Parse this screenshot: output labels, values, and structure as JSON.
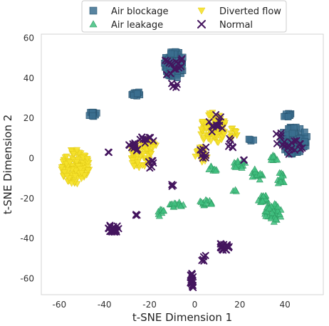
{
  "chart_data": {
    "type": "scatter",
    "xlabel": "t-SNE Dimension 1",
    "ylabel": "t-SNE Dimension 2",
    "xlim": [
      -68,
      57
    ],
    "ylim": [
      -68,
      62
    ],
    "xticks": [
      -60,
      -40,
      -20,
      0,
      20,
      40
    ],
    "yticks": [
      60,
      40,
      20,
      0,
      -20,
      -40,
      -60
    ],
    "grid": false,
    "legend_position": "top-center",
    "legend": [
      "Air blockage",
      "Diverted flow",
      "Air leakage",
      "Normal"
    ],
    "series": [
      {
        "name": "Air blockage",
        "marker": "square",
        "color": "#3b6e8f",
        "clusters": [
          {
            "cx": -9,
            "cy": 47,
            "rx": 4.5,
            "ry": 7,
            "n": 70
          },
          {
            "cx": -26,
            "cy": 32,
            "rx": 2,
            "ry": 1.5,
            "n": 12
          },
          {
            "cx": -45,
            "cy": 22,
            "rx": 2,
            "ry": 1.2,
            "n": 12
          },
          {
            "cx": 44,
            "cy": 9,
            "rx": 6,
            "ry": 7,
            "n": 70
          },
          {
            "cx": 41,
            "cy": 22,
            "rx": 2,
            "ry": 1.5,
            "n": 10
          },
          {
            "cx": 25,
            "cy": 9,
            "rx": 1.2,
            "ry": 1.2,
            "n": 4
          }
        ]
      },
      {
        "name": "Air leakage",
        "marker": "triangle-up",
        "color": "#3fbf7f",
        "clusters": [
          {
            "cx": 35,
            "cy": -27,
            "rx": 4,
            "ry": 5,
            "n": 40
          },
          {
            "cx": 30,
            "cy": -20,
            "rx": 2.5,
            "ry": 2,
            "n": 18
          },
          {
            "cx": 28,
            "cy": -8,
            "rx": 3,
            "ry": 3,
            "n": 18
          },
          {
            "cx": 20,
            "cy": -3,
            "rx": 3,
            "ry": 2,
            "n": 14
          },
          {
            "cx": 38,
            "cy": -10,
            "rx": 2,
            "ry": 3,
            "n": 12
          },
          {
            "cx": 35,
            "cy": 0,
            "rx": 2,
            "ry": 2,
            "n": 8
          },
          {
            "cx": -8,
            "cy": -23,
            "rx": 3,
            "ry": 1.5,
            "n": 14
          },
          {
            "cx": 5,
            "cy": -22,
            "rx": 3,
            "ry": 1.5,
            "n": 14
          },
          {
            "cx": -15,
            "cy": -27,
            "rx": 2,
            "ry": 2,
            "n": 8
          },
          {
            "cx": 8,
            "cy": -5,
            "rx": 2,
            "ry": 2,
            "n": 8
          },
          {
            "cx": 18,
            "cy": -16,
            "rx": 1,
            "ry": 1,
            "n": 3
          }
        ]
      },
      {
        "name": "Diverted flow",
        "marker": "triangle-down",
        "color": "#f5e12a",
        "clusters": [
          {
            "cx": -53,
            "cy": -4,
            "rx": 6.5,
            "ry": 9,
            "n": 130
          },
          {
            "cx": -24,
            "cy": 1,
            "rx": 5,
            "ry": 7,
            "n": 60
          },
          {
            "cx": -20,
            "cy": 7,
            "rx": 3,
            "ry": 3,
            "n": 18
          },
          {
            "cx": 8,
            "cy": 15,
            "rx": 6,
            "ry": 8,
            "n": 90
          },
          {
            "cx": 3,
            "cy": 2,
            "rx": 3,
            "ry": 4,
            "n": 20
          },
          {
            "cx": 17,
            "cy": 12,
            "rx": 2,
            "ry": 3,
            "n": 12
          }
        ]
      },
      {
        "name": "Normal",
        "marker": "x",
        "color": "#44155e",
        "clusters": [
          {
            "cx": -9,
            "cy": 46,
            "rx": 5,
            "ry": 6,
            "n": 14
          },
          {
            "cx": -9,
            "cy": 37,
            "rx": 3,
            "ry": 2,
            "n": 4
          },
          {
            "cx": -36,
            "cy": -35,
            "rx": 3,
            "ry": 2,
            "n": 25
          },
          {
            "cx": 13,
            "cy": -44,
            "rx": 2.5,
            "ry": 2,
            "n": 20
          },
          {
            "cx": -1,
            "cy": -61,
            "rx": 1.2,
            "ry": 4,
            "n": 18
          },
          {
            "cx": 4,
            "cy": -50,
            "rx": 2,
            "ry": 2,
            "n": 5
          },
          {
            "cx": -27,
            "cy": 5,
            "rx": 3,
            "ry": 3,
            "n": 12
          },
          {
            "cx": -22,
            "cy": 9,
            "rx": 4,
            "ry": 2,
            "n": 10
          },
          {
            "cx": -20,
            "cy": -3,
            "rx": 2,
            "ry": 3,
            "n": 6
          },
          {
            "cx": 10,
            "cy": 17,
            "rx": 4,
            "ry": 5,
            "n": 14
          },
          {
            "cx": 4,
            "cy": 3,
            "rx": 2,
            "ry": 3,
            "n": 8
          },
          {
            "cx": 16,
            "cy": 8,
            "rx": 2,
            "ry": 3,
            "n": 6
          },
          {
            "cx": 42,
            "cy": 6,
            "rx": 6,
            "ry": 4,
            "n": 16
          },
          {
            "cx": 38,
            "cy": 12,
            "rx": 2,
            "ry": 2,
            "n": 4
          },
          {
            "cx": -10,
            "cy": -14,
            "rx": 1,
            "ry": 1,
            "n": 3
          },
          {
            "cx": -26,
            "cy": -28,
            "rx": 0.6,
            "ry": 0.6,
            "n": 3
          },
          {
            "cx": -38,
            "cy": 3,
            "rx": 0.6,
            "ry": 0.6,
            "n": 2
          },
          {
            "cx": 21,
            "cy": -1,
            "rx": 1,
            "ry": 1,
            "n": 2
          }
        ]
      }
    ]
  }
}
